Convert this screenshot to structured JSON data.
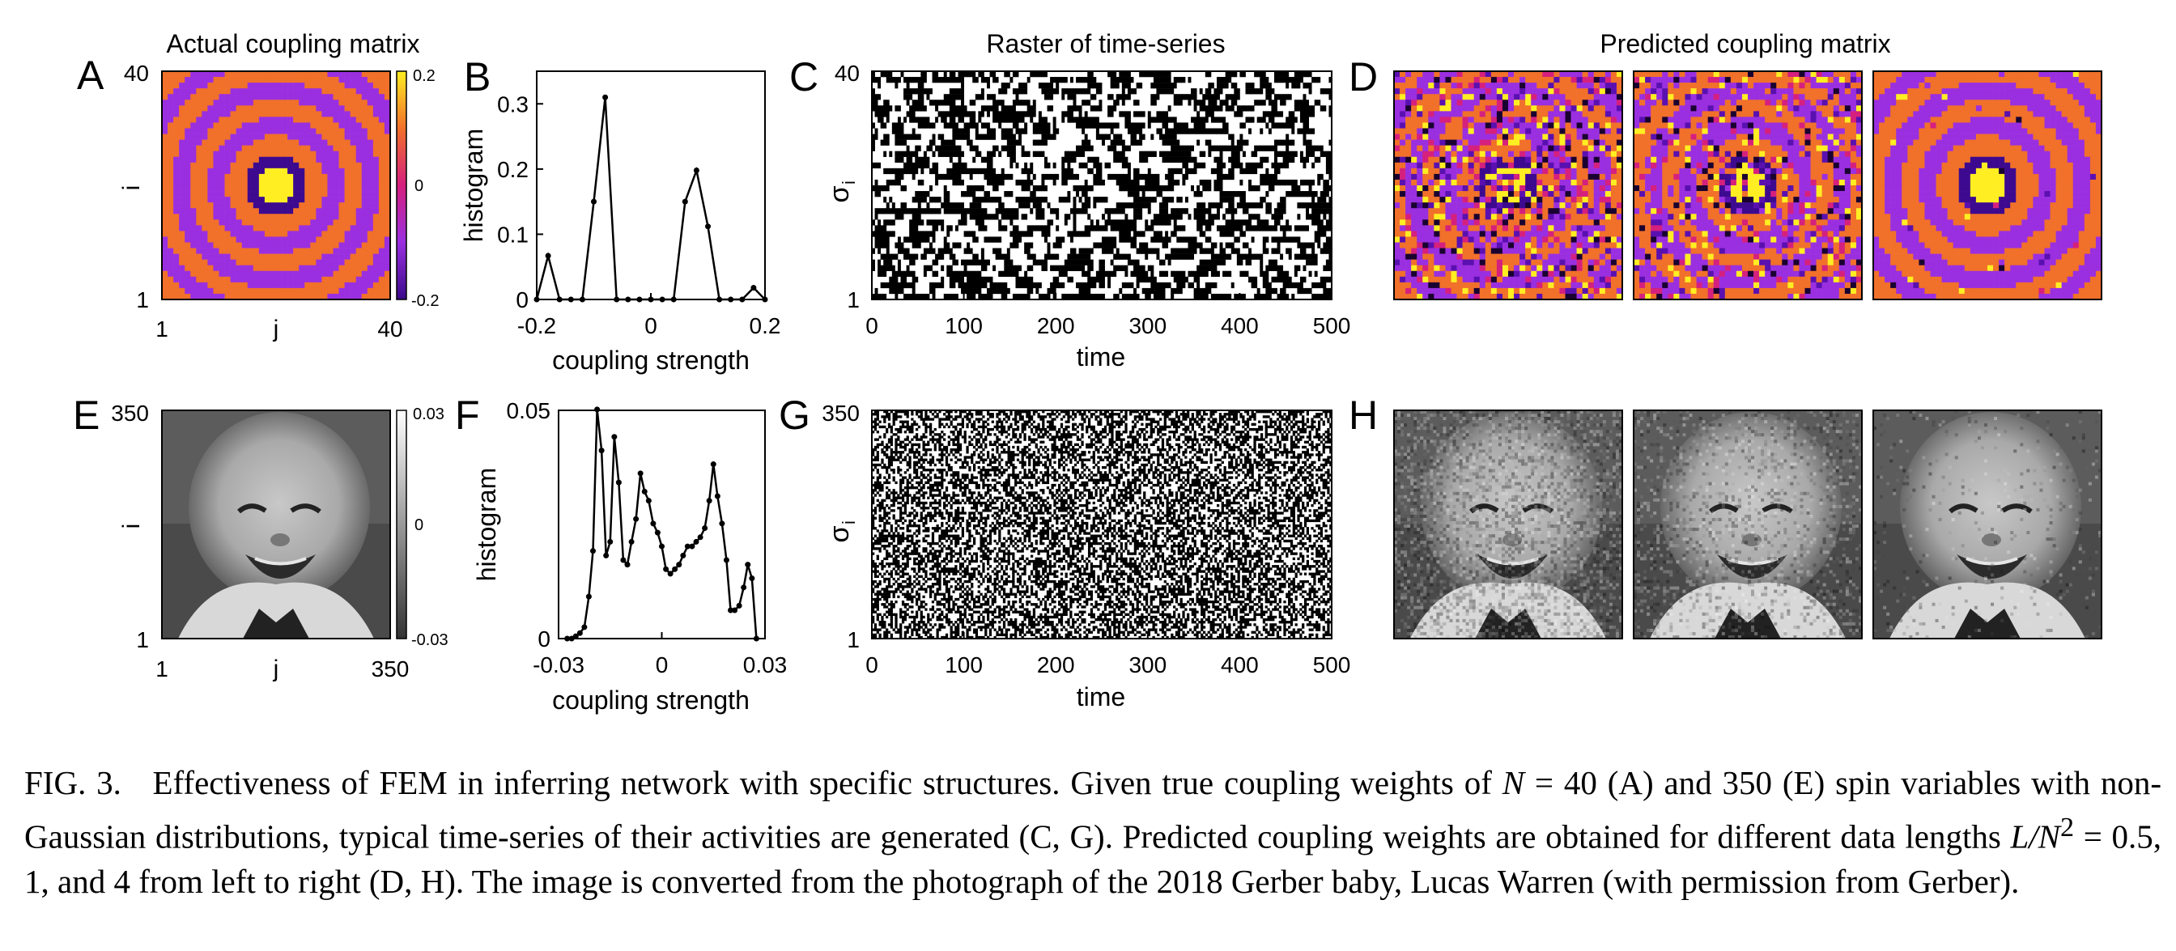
{
  "colors": {
    "magma_low": "#5a10b0",
    "magma_mid": "#d5207e",
    "magma_high": "#ffee22",
    "orange": "#f1702a",
    "purple": "#9a2fe0"
  },
  "panel_labels": [
    "A",
    "B",
    "C",
    "D",
    "E",
    "F",
    "G",
    "H"
  ],
  "panel_a": {
    "title": "Actual coupling matrix",
    "ylabel": "i",
    "xlabel": "j",
    "y_ticks": [
      "40",
      "1"
    ],
    "x_ticks": [
      "1",
      "40"
    ],
    "colorbar_ticks": [
      "0.2",
      "0",
      "-0.2"
    ]
  },
  "panel_c": {
    "title": "Raster of time-series",
    "ylabel": "σ",
    "ylabel_sub": "i",
    "y_ticks": [
      "40",
      "1"
    ],
    "xlabel": "time"
  },
  "panel_d": {
    "title": "Predicted coupling matrix"
  },
  "panel_e": {
    "ylabel": "i",
    "xlabel": "j",
    "y_ticks": [
      "350",
      "1"
    ],
    "x_ticks": [
      "1",
      "350"
    ],
    "colorbar_ticks": [
      "0.03",
      "0",
      "-0.03"
    ]
  },
  "panel_g": {
    "ylabel": "σ",
    "ylabel_sub": "i",
    "y_ticks": [
      "350",
      "1"
    ],
    "xlabel": "time"
  },
  "chart_data": [
    {
      "panel": "B",
      "type": "line",
      "xlabel": "coupling strength",
      "ylabel": "histogram",
      "xlim": [
        -0.2,
        0.2
      ],
      "ylim": [
        0,
        0.35
      ],
      "x_ticks": [
        "-0.2",
        "0",
        "0.2"
      ],
      "y_ticks": [
        "0",
        "0.1",
        "0.2",
        "0.3"
      ],
      "x": [
        -0.2,
        -0.18,
        -0.16,
        -0.14,
        -0.12,
        -0.1,
        -0.08,
        -0.06,
        -0.04,
        -0.02,
        0,
        0.02,
        0.04,
        0.06,
        0.08,
        0.1,
        0.12,
        0.14,
        0.16,
        0.18,
        0.2
      ],
      "y": [
        0,
        0.067,
        0,
        0,
        0,
        0.15,
        0.31,
        0,
        0,
        0,
        0,
        0,
        0,
        0.15,
        0.198,
        0.112,
        0,
        0,
        0,
        0.018,
        0
      ]
    },
    {
      "panel": "F",
      "type": "line",
      "xlabel": "coupling strength",
      "ylabel": "histogram",
      "xlim": [
        -0.03,
        0.03
      ],
      "ylim": [
        0,
        0.05
      ],
      "x_ticks": [
        "-0.03",
        "0",
        "0.03"
      ],
      "y_ticks": [
        "0",
        "0.05"
      ],
      "x": [
        -0.0275,
        -0.0262,
        -0.025,
        -0.0238,
        -0.0225,
        -0.0212,
        -0.02,
        -0.0188,
        -0.0175,
        -0.0162,
        -0.015,
        -0.0138,
        -0.0125,
        -0.0112,
        -0.01,
        -0.0088,
        -0.0075,
        -0.0062,
        -0.005,
        -0.0038,
        -0.0025,
        -0.0012,
        0,
        0.0012,
        0.0025,
        0.0038,
        0.005,
        0.0062,
        0.0075,
        0.0088,
        0.01,
        0.0112,
        0.0125,
        0.0138,
        0.015,
        0.0162,
        0.0175,
        0.0188,
        0.02,
        0.0212,
        0.0225,
        0.0238,
        0.025,
        0.0262,
        0.0275
      ],
      "y": [
        0,
        0,
        0.0005,
        0.0012,
        0.0025,
        0.0092,
        0.0192,
        0.0502,
        0.0412,
        0.0182,
        0.0212,
        0.0442,
        0.0342,
        0.0172,
        0.0162,
        0.0212,
        0.0262,
        0.0362,
        0.0322,
        0.0302,
        0.0252,
        0.0232,
        0.0202,
        0.0152,
        0.0142,
        0.0152,
        0.0162,
        0.0182,
        0.0202,
        0.0202,
        0.0212,
        0.0222,
        0.0242,
        0.0302,
        0.0382,
        0.0312,
        0.0252,
        0.0172,
        0.0062,
        0.0062,
        0.0072,
        0.0112,
        0.0162,
        0.0132,
        0
      ]
    },
    {
      "panel": "C",
      "type": "raster",
      "xlabel": "time",
      "x_ticks": [
        "0",
        "100",
        "200",
        "300",
        "400",
        "500"
      ],
      "xlim": [
        0,
        500
      ],
      "n_rows": 40
    },
    {
      "panel": "G",
      "type": "raster",
      "xlabel": "time",
      "x_ticks": [
        "0",
        "100",
        "200",
        "300",
        "400",
        "500"
      ],
      "xlim": [
        0,
        500
      ],
      "n_rows": 350
    }
  ],
  "caption": {
    "label": "FIG. 3.",
    "part1": "Effectiveness of FEM in inferring network with specific structures. Given true coupling weights of ",
    "math1": "N",
    "part2": " = 40 (A) and 350 (E) spin variables with non-Gaussian distributions, typical time-series of their activities are generated (C, G). Predicted coupling weights are obtained for different data lengths ",
    "math2": "L/N",
    "math2_sup": "2",
    "part3": " = 0.5, 1, and 4 from left to right (D, H). The image is converted from the photograph of the 2018 Gerber baby, Lucas Warren (with permission from Gerber)."
  }
}
